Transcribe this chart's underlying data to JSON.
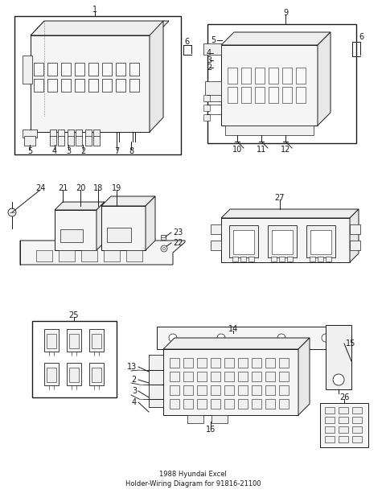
{
  "title": "1988 Hyundai Excel\nHolder-Wiring Diagram for 91816-21100",
  "bg": "#ffffff",
  "lc": "#1a1a1a",
  "tc": "#1a1a1a",
  "fs": 7.0,
  "fs_title": 6.0
}
